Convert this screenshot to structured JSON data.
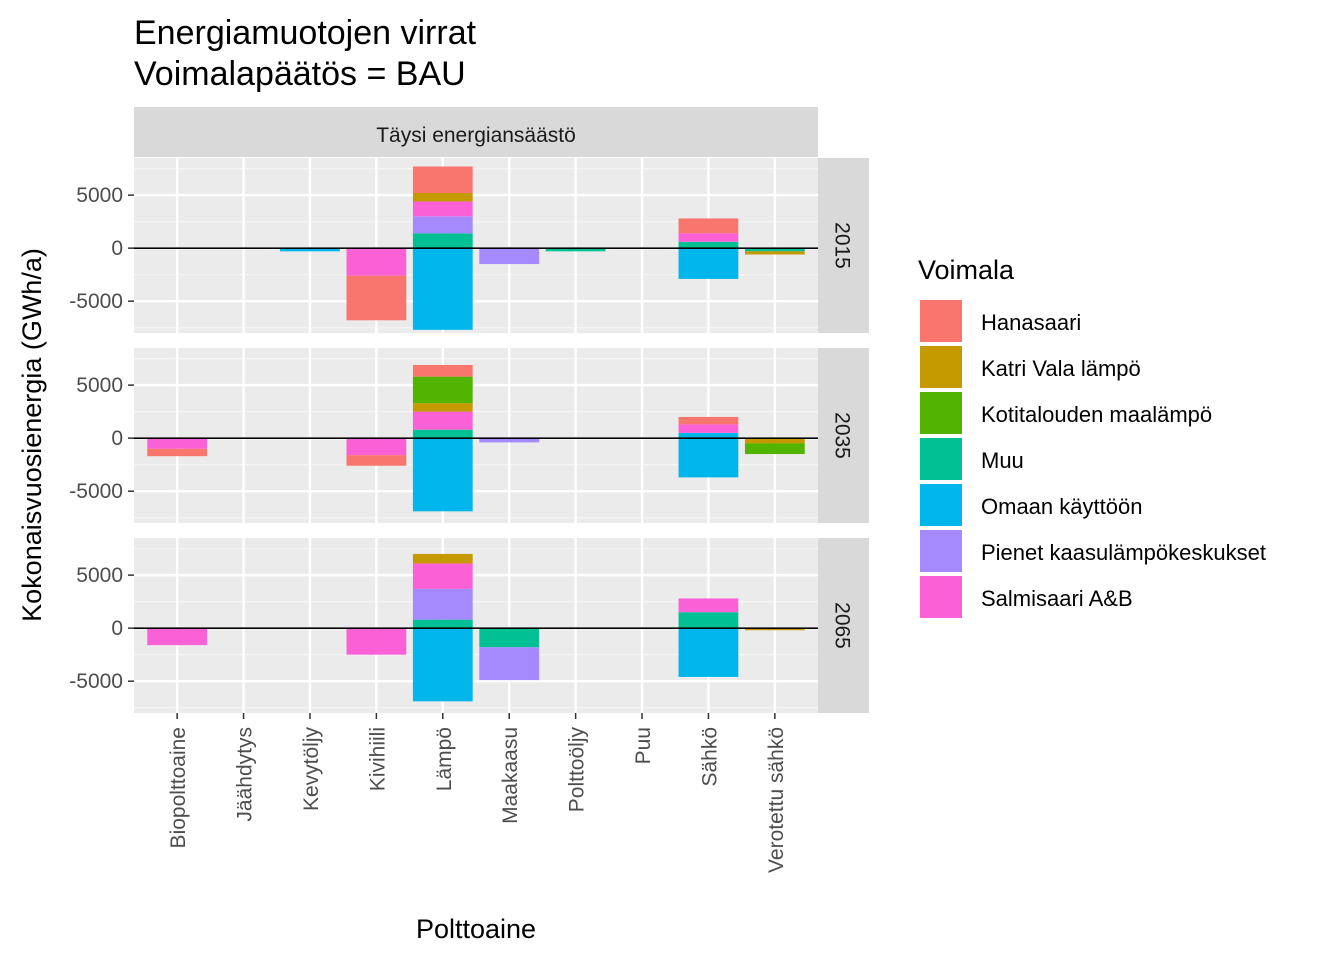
{
  "chart_data": {
    "type": "bar",
    "stacked": true,
    "title": "Energiamuotojen virrat",
    "subtitle": "Voimalapäätös = BAU",
    "xlabel": "Polttoaine",
    "ylabel": "Kokonaisvuosienergia (GWh/a)",
    "column_facet": "Täysi energiansäästö",
    "ylim": [
      -8000,
      8500
    ],
    "yticks": [
      -5000,
      0,
      5000
    ],
    "ytick_labels": [
      "-5000",
      "0",
      "5000"
    ],
    "grid": true,
    "legend_position": "right",
    "legend_title": "Voimala",
    "categories": [
      "Biopolttoaine",
      "Jäähdytys",
      "Kevytöljy",
      "Kivihiili",
      "Lämpö",
      "Maakaasu",
      "Polttoöljy",
      "Puu",
      "Sähkö",
      "Verotettu sähkö"
    ],
    "series": [
      {
        "name": "Hanasaari",
        "color": "#F8766D"
      },
      {
        "name": "Katri Vala lämpö",
        "color": "#C49A00"
      },
      {
        "name": "Kotitalouden maalämpö",
        "color": "#53B400"
      },
      {
        "name": "Muu",
        "color": "#00C094"
      },
      {
        "name": "Omaan käyttöön",
        "color": "#00B6EB"
      },
      {
        "name": "Pienet kaasulämpökeskukset",
        "color": "#A58AFF"
      },
      {
        "name": "Salmisaari A&B",
        "color": "#FB61D7"
      }
    ],
    "panels": [
      {
        "label": "2015",
        "stacks": [
          {
            "category": "Kevytöljy",
            "segments": [
              {
                "series": "Omaan käyttöön",
                "value": -300
              }
            ]
          },
          {
            "category": "Kivihiili",
            "segments": [
              {
                "series": "Salmisaari A&B",
                "value": -2600
              },
              {
                "series": "Hanasaari",
                "value": -4200
              }
            ]
          },
          {
            "category": "Lämpö",
            "segments": [
              {
                "series": "Muu",
                "value": 1400
              },
              {
                "series": "Pienet kaasulämpökeskukset",
                "value": 1600
              },
              {
                "series": "Salmisaari A&B",
                "value": 1400
              },
              {
                "series": "Katri Vala lämpö",
                "value": 800
              },
              {
                "series": "Hanasaari",
                "value": 2500
              },
              {
                "series": "Omaan käyttöön",
                "value": -7700
              }
            ]
          },
          {
            "category": "Maakaasu",
            "segments": [
              {
                "series": "Pienet kaasulämpökeskukset",
                "value": -1500
              }
            ]
          },
          {
            "category": "Polttoöljy",
            "segments": [
              {
                "series": "Muu",
                "value": -300
              }
            ]
          },
          {
            "category": "Sähkö",
            "segments": [
              {
                "series": "Muu",
                "value": 600
              },
              {
                "series": "Salmisaari A&B",
                "value": 800
              },
              {
                "series": "Hanasaari",
                "value": 1400
              },
              {
                "series": "Omaan käyttöön",
                "value": -2900
              }
            ]
          },
          {
            "category": "Verotettu sähkö",
            "segments": [
              {
                "series": "Muu",
                "value": -300
              },
              {
                "series": "Katri Vala lämpö",
                "value": -300
              }
            ]
          }
        ]
      },
      {
        "label": "2035",
        "stacks": [
          {
            "category": "Biopolttoaine",
            "segments": [
              {
                "series": "Salmisaari A&B",
                "value": -1000
              },
              {
                "series": "Hanasaari",
                "value": -700
              }
            ]
          },
          {
            "category": "Kivihiili",
            "segments": [
              {
                "series": "Salmisaari A&B",
                "value": -1600
              },
              {
                "series": "Hanasaari",
                "value": -1000
              }
            ]
          },
          {
            "category": "Lämpö",
            "segments": [
              {
                "series": "Muu",
                "value": 800
              },
              {
                "series": "Salmisaari A&B",
                "value": 1700
              },
              {
                "series": "Katri Vala lämpö",
                "value": 800
              },
              {
                "series": "Kotitalouden maalämpö",
                "value": 2500
              },
              {
                "series": "Hanasaari",
                "value": 1100
              },
              {
                "series": "Omaan käyttöön",
                "value": -6900
              }
            ]
          },
          {
            "category": "Maakaasu",
            "segments": [
              {
                "series": "Pienet kaasulämpökeskukset",
                "value": -400
              }
            ]
          },
          {
            "category": "Sähkö",
            "segments": [
              {
                "series": "Omaan käyttöön",
                "value": 500
              },
              {
                "series": "Salmisaari A&B",
                "value": 800
              },
              {
                "series": "Hanasaari",
                "value": 700
              },
              {
                "series": "Omaan käyttöön",
                "value": -3700
              }
            ]
          },
          {
            "category": "Verotettu sähkö",
            "segments": [
              {
                "series": "Katri Vala lämpö",
                "value": -500
              },
              {
                "series": "Kotitalouden maalämpö",
                "value": -1000
              }
            ]
          }
        ]
      },
      {
        "label": "2065",
        "stacks": [
          {
            "category": "Biopolttoaine",
            "segments": [
              {
                "series": "Salmisaari A&B",
                "value": -1600
              }
            ]
          },
          {
            "category": "Kivihiili",
            "segments": [
              {
                "series": "Salmisaari A&B",
                "value": -2500
              }
            ]
          },
          {
            "category": "Lämpö",
            "segments": [
              {
                "series": "Muu",
                "value": 800
              },
              {
                "series": "Pienet kaasulämpökeskukset",
                "value": 2900
              },
              {
                "series": "Salmisaari A&B",
                "value": 2400
              },
              {
                "series": "Katri Vala lämpö",
                "value": 900
              },
              {
                "series": "Omaan käyttöön",
                "value": -6900
              }
            ]
          },
          {
            "category": "Maakaasu",
            "segments": [
              {
                "series": "Muu",
                "value": -1800
              },
              {
                "series": "Pienet kaasulämpökeskukset",
                "value": -3100
              }
            ]
          },
          {
            "category": "Sähkö",
            "segments": [
              {
                "series": "Muu",
                "value": 1500
              },
              {
                "series": "Salmisaari A&B",
                "value": 1300
              },
              {
                "series": "Omaan käyttöön",
                "value": -4600
              }
            ]
          },
          {
            "category": "Verotettu sähkö",
            "segments": [
              {
                "series": "Katri Vala lämpö",
                "value": -200
              }
            ]
          }
        ]
      }
    ]
  }
}
